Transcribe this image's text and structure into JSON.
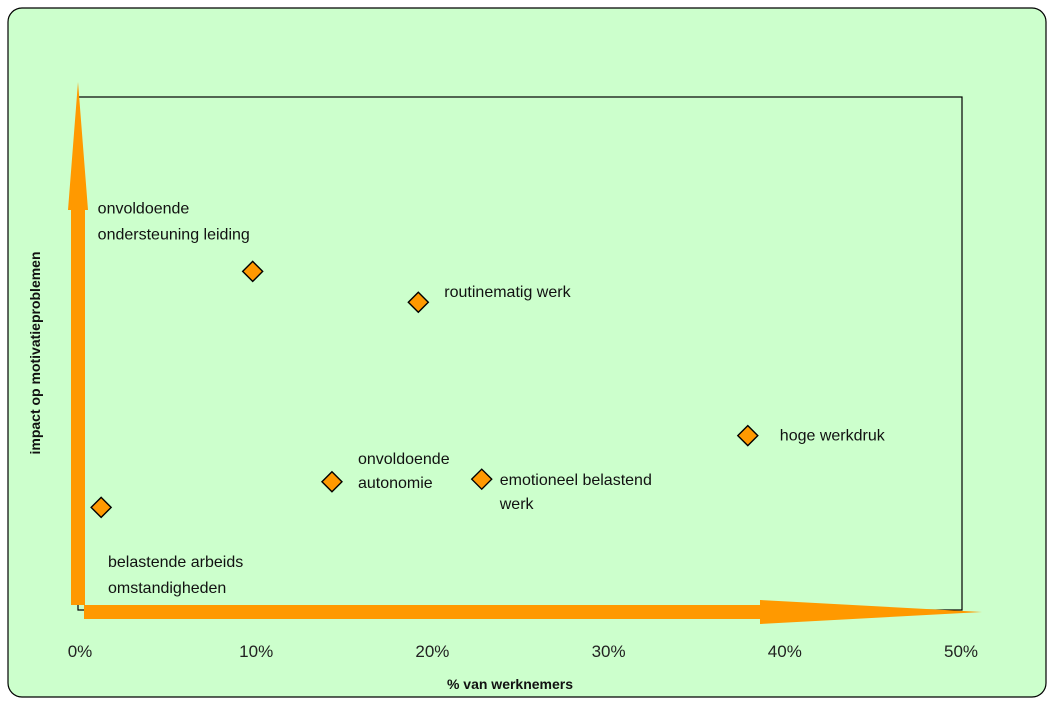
{
  "colors": {
    "background": "#ccffcc",
    "arrow": "#ff9900",
    "marker_fill": "#ff9900",
    "marker_stroke": "#000000"
  },
  "chart_data": {
    "type": "scatter",
    "xlabel": "% van werknemers",
    "ylabel": "impact op motivatieproblemen",
    "xlim": [
      0,
      50
    ],
    "x_ticks": [
      "0%",
      "10%",
      "20%",
      "30%",
      "40%",
      "50%"
    ],
    "grid": false,
    "points": [
      {
        "x": 1.2,
        "y": 20,
        "label_lines": []
      },
      {
        "x": 9.8,
        "y": 66,
        "label_lines": [
          "onvoldoende",
          "ondersteuning leiding"
        ]
      },
      {
        "x": 14.3,
        "y": 25,
        "label_lines": [
          "onvoldoende",
          "autonomie"
        ]
      },
      {
        "x": 19.2,
        "y": 60,
        "label_lines": [
          "routinematig werk"
        ]
      },
      {
        "x": 22.8,
        "y": 25.5,
        "label_lines": [
          "emotioneel    belastend",
          "werk"
        ]
      },
      {
        "x": 37.9,
        "y": 34,
        "label_lines": [
          "hoge werkdruk"
        ]
      }
    ],
    "annotations": [
      {
        "text_lines": [
          "belastende arbeids",
          "omstandigheden"
        ]
      }
    ]
  }
}
